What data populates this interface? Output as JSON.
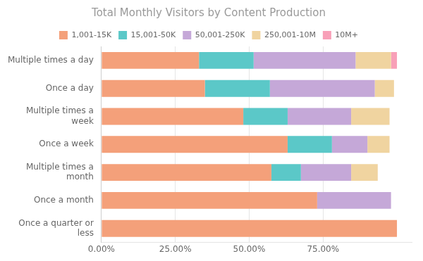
{
  "chart_data": {
    "type": "bar",
    "orientation": "horizontal",
    "stacked": true,
    "title": "Total Monthly Visitors by Content Production",
    "categories": [
      "Multiple times a day",
      "Once a day",
      "Multiple times a\nweek",
      "Once a week",
      "Multiple times a\nmonth",
      "Once a month",
      "Once a quarter or\nless"
    ],
    "series": [
      {
        "name": "1,001-15K",
        "color": "#F4A07A",
        "values": [
          0.33,
          0.35,
          0.48,
          0.63,
          0.575,
          0.73,
          1.0
        ]
      },
      {
        "name": "15,001-50K",
        "color": "#5BC8C8",
        "values": [
          0.185,
          0.22,
          0.15,
          0.15,
          0.1,
          0.0,
          0.0
        ]
      },
      {
        "name": "50,001-250K",
        "color": "#C5A8D8",
        "values": [
          0.345,
          0.355,
          0.215,
          0.12,
          0.17,
          0.25,
          0.0
        ]
      },
      {
        "name": "250,001-10M",
        "color": "#F0D4A0",
        "values": [
          0.12,
          0.065,
          0.13,
          0.075,
          0.09,
          0.0,
          0.0
        ]
      },
      {
        "name": "10M+",
        "color": "#F8A0B8",
        "values": [
          0.02,
          0.0,
          0.0,
          0.0,
          0.0,
          0.0,
          0.0
        ]
      }
    ],
    "xlim": [
      0,
      1.05
    ],
    "xticks": [
      {
        "value": 0.0,
        "label": "0.00%"
      },
      {
        "value": 0.25,
        "label": "25.00%"
      },
      {
        "value": 0.5,
        "label": "50.00%"
      },
      {
        "value": 0.75,
        "label": "75.00%"
      }
    ],
    "grid": true,
    "legend": "top"
  }
}
